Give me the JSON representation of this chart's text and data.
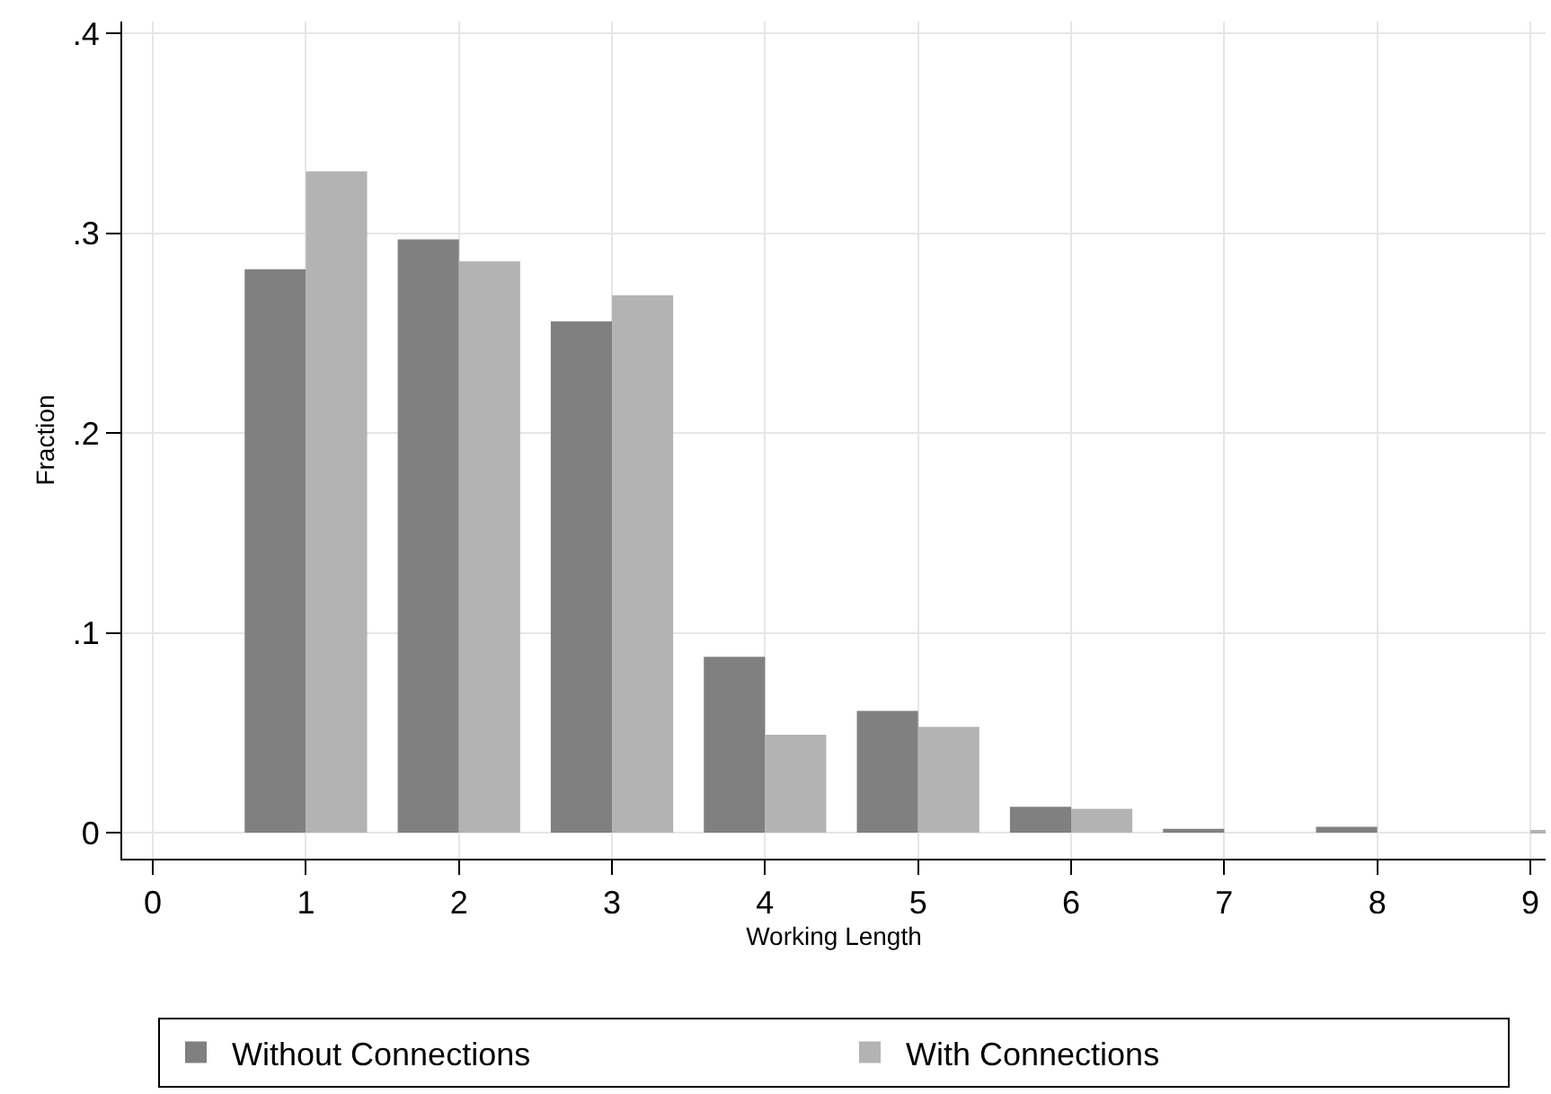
{
  "chart_data": {
    "type": "bar",
    "xlabel": "Working Length",
    "ylabel": "Fraction",
    "x": [
      1,
      2,
      3,
      4,
      5,
      6,
      7,
      8,
      9
    ],
    "series": [
      {
        "name": "Without Connections",
        "color": "#808080",
        "values": [
          0.282,
          0.297,
          0.256,
          0.088,
          0.061,
          0.013,
          0.002,
          0.003,
          0
        ]
      },
      {
        "name": "With Connections",
        "color": "#b3b3b3",
        "values": [
          0.331,
          0.286,
          0.269,
          0.049,
          0.053,
          0.012,
          0,
          0,
          0.001
        ]
      }
    ],
    "xlim": [
      -0.2,
      9.1
    ],
    "xticks": [
      0,
      1,
      2,
      3,
      4,
      5,
      6,
      7,
      8,
      9
    ],
    "ylim": [
      -0.013,
      0.406
    ],
    "yticks": [
      0,
      {
        "value": 0.1,
        "label": ".1"
      },
      {
        "value": 0.2,
        "label": ".2"
      },
      {
        "value": 0.3,
        "label": ".3"
      },
      {
        "value": 0.4,
        "label": ".4"
      }
    ],
    "grid": true,
    "legend": "bottom"
  }
}
